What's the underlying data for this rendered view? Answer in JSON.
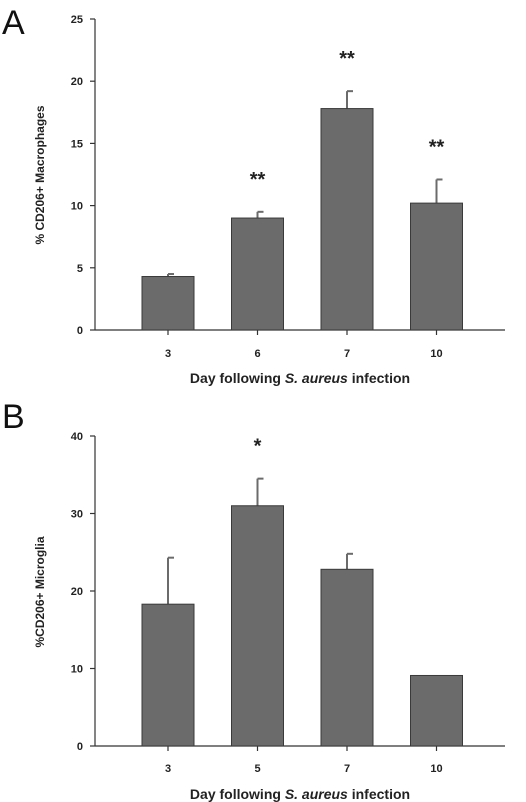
{
  "chart_data": [
    {
      "type": "bar",
      "panel": "A",
      "categories": [
        "3",
        "6",
        "7",
        "10"
      ],
      "values": [
        4.3,
        9.0,
        17.8,
        10.2
      ],
      "errors": [
        0.2,
        0.5,
        1.4,
        1.9
      ],
      "significance": [
        "",
        "**",
        "**",
        "**"
      ],
      "ylabel": "% CD206+ Macrophages",
      "xlabel_prefix": "Day following ",
      "xlabel_italic": "S. aureus",
      "xlabel_suffix": " infection",
      "ylim": [
        0,
        25
      ],
      "yticks": [
        0,
        5,
        10,
        15,
        20,
        25
      ],
      "grid": false,
      "bar_color": "#6b6b6b"
    },
    {
      "type": "bar",
      "panel": "B",
      "categories": [
        "3",
        "5",
        "7",
        "10"
      ],
      "values": [
        18.3,
        31.0,
        22.8,
        9.1
      ],
      "errors": [
        6.0,
        3.5,
        2.0,
        0
      ],
      "significance": [
        "",
        "*",
        "",
        ""
      ],
      "ylabel": "%CD206+ Microglia",
      "xlabel_prefix": "Day following ",
      "xlabel_italic": "S. aureus",
      "xlabel_suffix": " infection",
      "ylim": [
        0,
        40
      ],
      "yticks": [
        0,
        10,
        20,
        30,
        40
      ],
      "grid": false,
      "bar_color": "#6b6b6b"
    }
  ]
}
